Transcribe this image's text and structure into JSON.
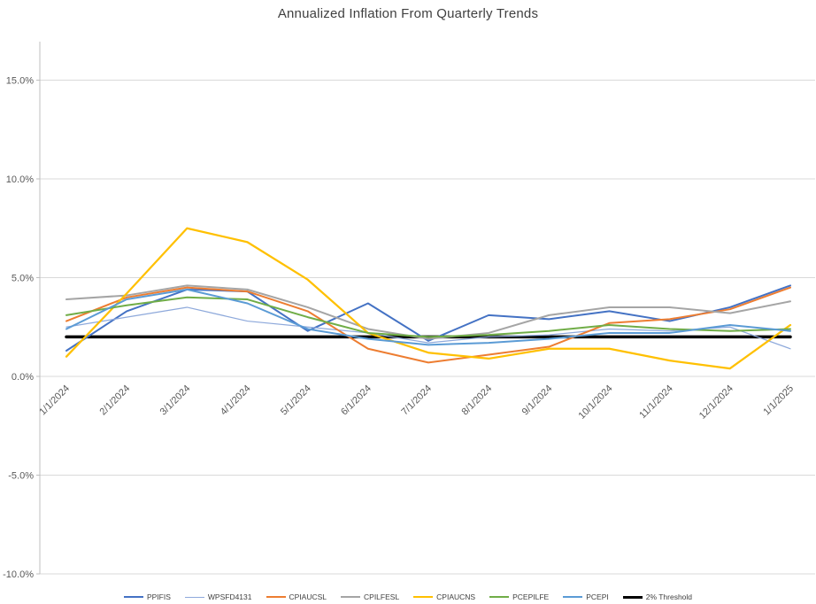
{
  "chart_data": {
    "type": "line",
    "title": "Annualized Inflation From Quarterly Trends",
    "xlabel": "",
    "ylabel": "",
    "x": [
      "1/1/2024",
      "2/1/2024",
      "3/1/2024",
      "4/1/2024",
      "5/1/2024",
      "6/1/2024",
      "7/1/2024",
      "8/1/2024",
      "9/1/2024",
      "10/1/2024",
      "11/1/2024",
      "12/1/2024",
      "1/1/2025"
    ],
    "ylim": [
      -10,
      15
    ],
    "yticks": [
      15,
      10,
      5,
      0,
      -5,
      -10
    ],
    "ytick_labels": [
      "15.0%",
      "10.0%",
      "5.0%",
      "0.0%",
      "-5.0%",
      "-10.0%"
    ],
    "grid": true,
    "legend_position": "bottom",
    "colors": {
      "grid": "#D9D9D9",
      "axis": "#BFBFBF",
      "tick_text": "#595959",
      "title_text": "#404040"
    },
    "series": [
      {
        "name": "PPIFIS",
        "color": "#4472C4",
        "width": 2,
        "values": [
          1.3,
          3.3,
          4.4,
          4.3,
          2.3,
          3.7,
          1.8,
          3.1,
          2.9,
          3.3,
          2.8,
          3.5,
          4.6
        ]
      },
      {
        "name": "WPSFD4131",
        "color": "#8EA9DB",
        "width": 1.25,
        "values": [
          2.5,
          3.0,
          3.5,
          2.8,
          2.5,
          2.2,
          1.7,
          2.0,
          2.1,
          2.4,
          2.3,
          2.5,
          1.4
        ]
      },
      {
        "name": "CPIAUCSL",
        "color": "#ED7D31",
        "width": 2,
        "values": [
          2.8,
          4.0,
          4.5,
          4.3,
          3.3,
          1.4,
          0.7,
          1.1,
          1.5,
          2.7,
          2.9,
          3.4,
          4.5
        ]
      },
      {
        "name": "CPILFESL",
        "color": "#A5A5A5",
        "width": 2,
        "values": [
          3.9,
          4.1,
          4.6,
          4.4,
          3.5,
          2.4,
          1.9,
          2.2,
          3.1,
          3.5,
          3.5,
          3.2,
          3.8
        ]
      },
      {
        "name": "CPIAUCNS",
        "color": "#FFC000",
        "width": 2.25,
        "values": [
          1.0,
          4.2,
          7.5,
          6.8,
          4.9,
          2.2,
          1.2,
          0.9,
          1.4,
          1.4,
          0.8,
          0.4,
          2.6
        ]
      },
      {
        "name": "PCEPILFE",
        "color": "#70AD47",
        "width": 2,
        "values": [
          3.1,
          3.6,
          4.0,
          3.9,
          3.0,
          2.2,
          2.0,
          2.1,
          2.3,
          2.6,
          2.4,
          2.3,
          2.4
        ]
      },
      {
        "name": "PCEPI",
        "color": "#5B9BD5",
        "width": 2,
        "values": [
          2.4,
          3.9,
          4.4,
          3.7,
          2.4,
          1.9,
          1.6,
          1.7,
          1.9,
          2.2,
          2.2,
          2.6,
          2.3
        ]
      },
      {
        "name": "2% Threshold",
        "color": "#000000",
        "width": 3.5,
        "values": [
          2.0,
          2.0,
          2.0,
          2.0,
          2.0,
          2.0,
          2.0,
          2.0,
          2.0,
          2.0,
          2.0,
          2.0,
          2.0
        ]
      }
    ]
  }
}
